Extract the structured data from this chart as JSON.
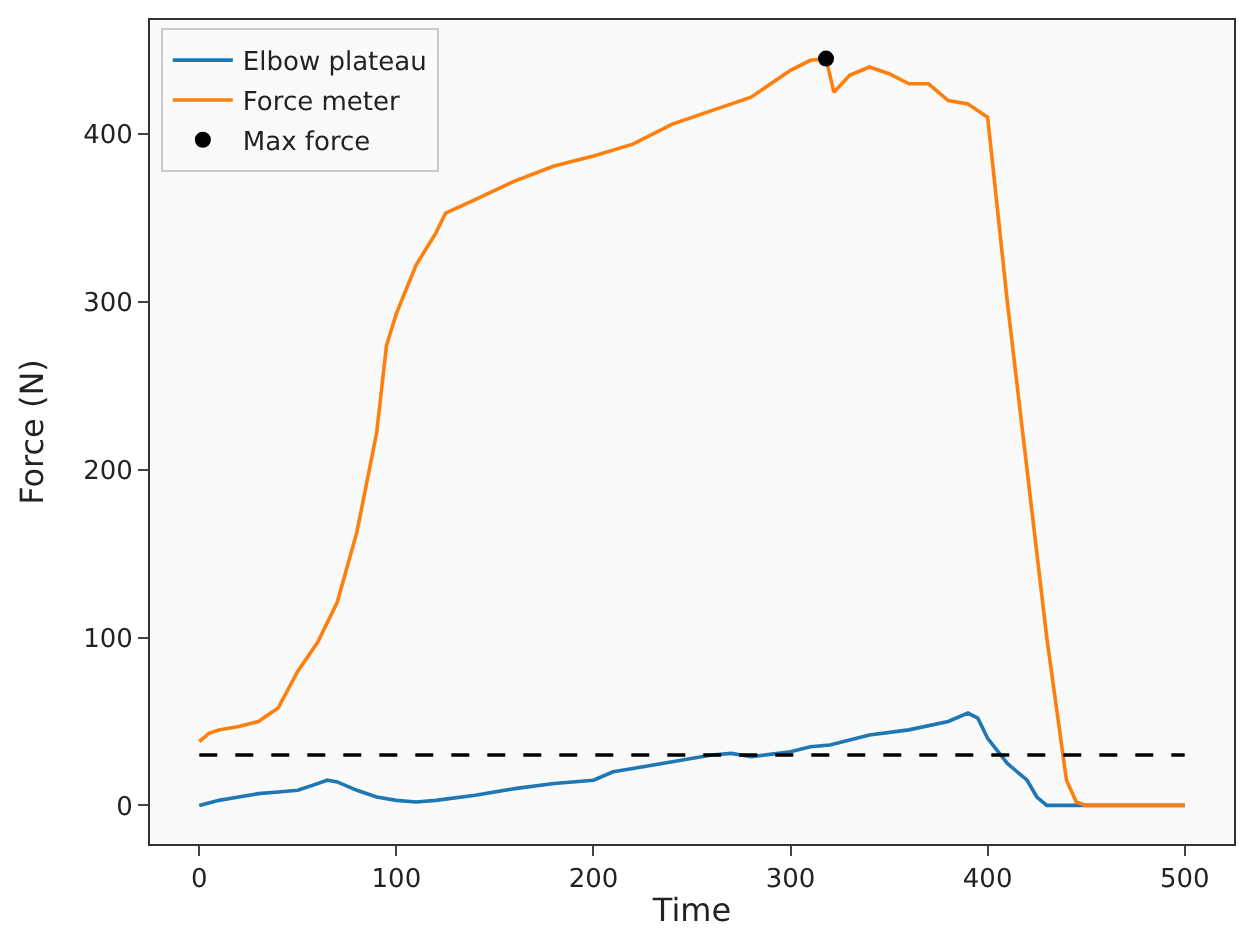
{
  "chart_data": {
    "type": "line",
    "xlabel": "Time",
    "ylabel": "Force (N)",
    "xlim": [
      -25,
      525
    ],
    "ylim": [
      -23,
      468
    ],
    "xticks": [
      0,
      100,
      200,
      300,
      400,
      500
    ],
    "yticks": [
      0,
      100,
      200,
      300,
      400
    ],
    "legend": "top left",
    "series": [
      {
        "name": "Elbow plateau",
        "color": "#1f77b4",
        "x": [
          0,
          10,
          20,
          30,
          40,
          50,
          60,
          65,
          70,
          80,
          90,
          100,
          110,
          120,
          140,
          160,
          180,
          200,
          210,
          220,
          240,
          260,
          270,
          280,
          300,
          310,
          320,
          340,
          360,
          380,
          390,
          395,
          400,
          410,
          420,
          425,
          430,
          450,
          470,
          500
        ],
        "values": [
          0,
          3,
          5,
          7,
          8,
          9,
          13,
          15,
          14,
          9,
          5,
          3,
          2,
          3,
          6,
          10,
          13,
          15,
          20,
          22,
          26,
          30,
          31,
          29,
          32,
          35,
          36,
          42,
          45,
          50,
          55,
          52,
          40,
          25,
          15,
          5,
          0,
          0,
          0,
          0
        ]
      },
      {
        "name": "Force meter",
        "color": "#ff7f0e",
        "x": [
          0,
          5,
          10,
          20,
          30,
          40,
          50,
          60,
          70,
          80,
          90,
          95,
          100,
          110,
          120,
          125,
          140,
          160,
          180,
          200,
          220,
          240,
          260,
          280,
          300,
          310,
          318,
          322,
          330,
          340,
          350,
          360,
          370,
          380,
          390,
          400,
          410,
          420,
          430,
          440,
          445,
          450,
          470,
          500
        ],
        "values": [
          38,
          43,
          45,
          47,
          50,
          58,
          80,
          97,
          121,
          163,
          222,
          274,
          293,
          322,
          341,
          353,
          361,
          372,
          381,
          387,
          394,
          406,
          414,
          422,
          438,
          444,
          445,
          425,
          435,
          440,
          436,
          430,
          430,
          420,
          418,
          410,
          300,
          200,
          100,
          15,
          2,
          0,
          0,
          0
        ]
      },
      {
        "type": "line",
        "color": "#000000",
        "line_style": "dashed",
        "x": [
          0,
          500
        ],
        "values": [
          30,
          30
        ]
      },
      {
        "type": "scatter",
        "name": "Max force",
        "color": "#000000",
        "marker": "circle",
        "x": [
          318
        ],
        "values": [
          445
        ]
      }
    ]
  }
}
